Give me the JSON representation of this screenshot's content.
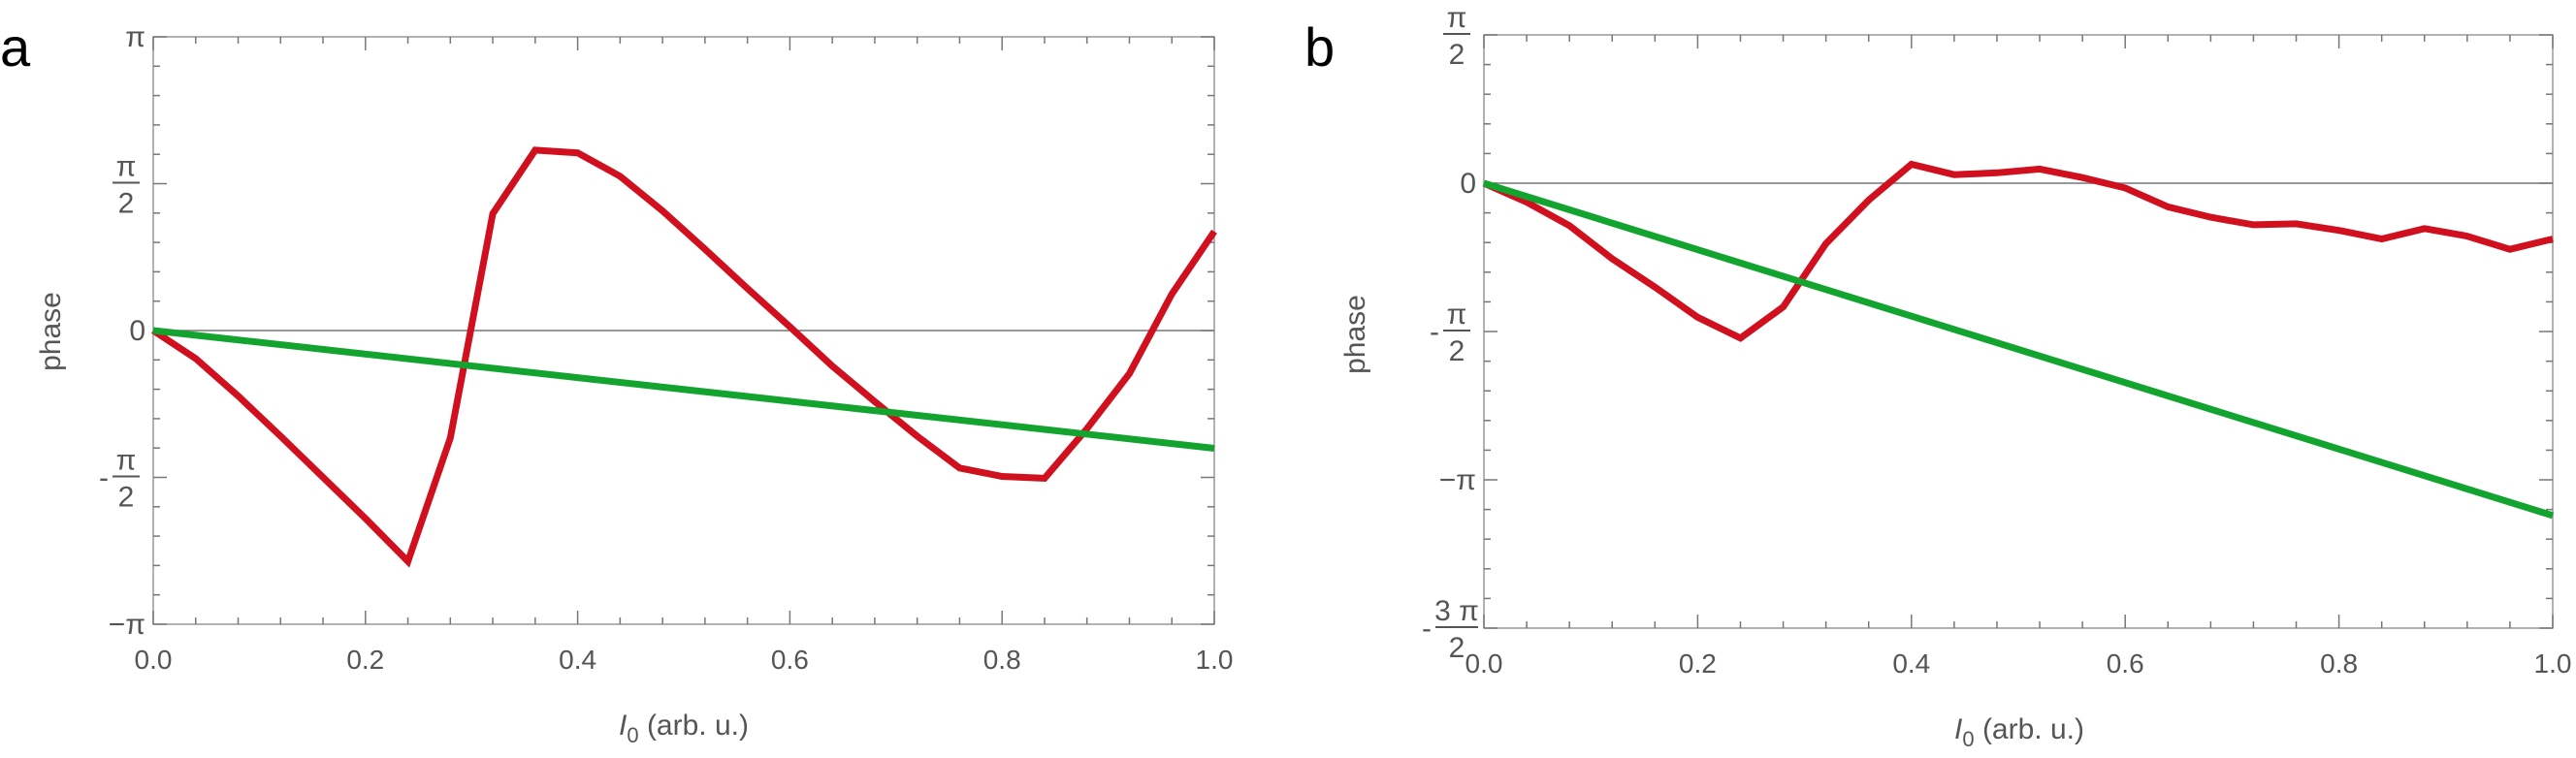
{
  "colors": {
    "red": "#d0101e",
    "green": "#13a32f"
  },
  "chart_data": [
    {
      "panel": "a",
      "type": "line",
      "xlabel_symbol": "I",
      "xlabel_sub": "0",
      "xlabel_rest": " (arb. u.)",
      "ylabel": "phase",
      "xlim": [
        0,
        1
      ],
      "ylim": [
        -3.14159,
        3.14159
      ],
      "xticks": [
        {
          "v": 0.0,
          "label": "0.0"
        },
        {
          "v": 0.2,
          "label": "0.2"
        },
        {
          "v": 0.4,
          "label": "0.4"
        },
        {
          "v": 0.6,
          "label": "0.6"
        },
        {
          "v": 0.8,
          "label": "0.8"
        },
        {
          "v": 1.0,
          "label": "1.0"
        }
      ],
      "yticks": [
        {
          "v": 3.14159,
          "kind": "text",
          "text": "π"
        },
        {
          "v": 1.5708,
          "kind": "frac",
          "sign": "",
          "num": "π",
          "den": "2"
        },
        {
          "v": 0,
          "kind": "text",
          "text": "0"
        },
        {
          "v": -1.5708,
          "kind": "frac",
          "sign": "-",
          "num": "π",
          "den": "2"
        },
        {
          "v": -3.14159,
          "kind": "text",
          "text": "−π"
        }
      ],
      "series": [
        {
          "color": "red",
          "x": [
            0,
            0.04,
            0.08,
            0.12,
            0.16,
            0.2,
            0.24,
            0.28,
            0.32,
            0.36,
            0.4,
            0.44,
            0.48,
            0.52,
            0.56,
            0.6,
            0.64,
            0.68,
            0.72,
            0.76,
            0.8,
            0.84,
            0.88,
            0.92,
            0.96,
            1.0
          ],
          "y": [
            0,
            -0.3,
            -0.7,
            -1.13,
            -1.57,
            -2.01,
            -2.47,
            -1.15,
            1.25,
            1.93,
            1.9,
            1.65,
            1.28,
            0.87,
            0.45,
            0.04,
            -0.38,
            -0.76,
            -1.13,
            -1.47,
            -1.56,
            -1.58,
            -1.05,
            -0.46,
            0.39,
            1.06
          ]
        },
        {
          "color": "green",
          "x": [
            0,
            1
          ],
          "y": [
            0,
            -1.26
          ]
        }
      ]
    },
    {
      "panel": "b",
      "type": "line",
      "xlabel_symbol": "I",
      "xlabel_sub": "0",
      "xlabel_rest": " (arb. u.)",
      "ylabel": "phase",
      "xlim": [
        0,
        1
      ],
      "ylim": [
        -4.712,
        1.5708
      ],
      "xticks": [
        {
          "v": 0.0,
          "label": "0.0"
        },
        {
          "v": 0.2,
          "label": "0.2"
        },
        {
          "v": 0.4,
          "label": "0.4"
        },
        {
          "v": 0.6,
          "label": "0.6"
        },
        {
          "v": 0.8,
          "label": "0.8"
        },
        {
          "v": 1.0,
          "label": "1.0"
        }
      ],
      "yticks": [
        {
          "v": 1.5708,
          "kind": "frac",
          "sign": "",
          "num": "π",
          "den": "2"
        },
        {
          "v": 0,
          "kind": "text",
          "text": "0"
        },
        {
          "v": -1.5708,
          "kind": "frac",
          "sign": "-",
          "num": "π",
          "den": "2"
        },
        {
          "v": -3.14159,
          "kind": "text",
          "text": "−π"
        },
        {
          "v": -4.712,
          "kind": "frac",
          "sign": "-",
          "num": "3 π",
          "den": "2"
        }
      ],
      "series": [
        {
          "color": "red",
          "x": [
            0,
            0.04,
            0.08,
            0.12,
            0.16,
            0.2,
            0.24,
            0.28,
            0.32,
            0.36,
            0.4,
            0.44,
            0.48,
            0.52,
            0.56,
            0.6,
            0.64,
            0.68,
            0.72,
            0.76,
            0.8,
            0.84,
            0.88,
            0.92,
            0.96,
            1.0
          ],
          "y": [
            0,
            -0.2,
            -0.45,
            -0.8,
            -1.1,
            -1.42,
            -1.64,
            -1.31,
            -0.64,
            -0.18,
            0.2,
            0.09,
            0.11,
            0.15,
            0.06,
            -0.05,
            -0.25,
            -0.36,
            -0.44,
            -0.43,
            -0.5,
            -0.59,
            -0.48,
            -0.56,
            -0.7,
            -0.59
          ]
        },
        {
          "color": "green",
          "x": [
            0,
            1
          ],
          "y": [
            0,
            -3.52
          ]
        }
      ]
    }
  ]
}
